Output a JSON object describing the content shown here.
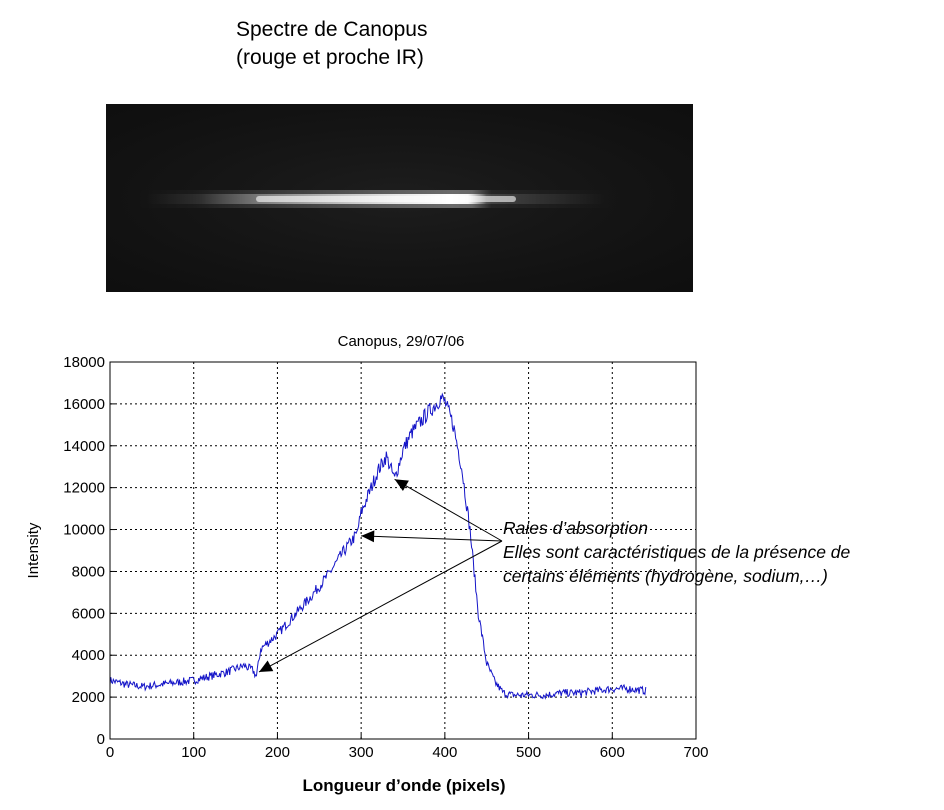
{
  "header": {
    "title_line1": "Spectre de Canopus",
    "title_line2": "(rouge et proche IR)"
  },
  "spectrum_image": {
    "description_icon": "spectrum-streak"
  },
  "annotation": {
    "line1": "Raies d’absorption",
    "line2": "Elles sont caractéristiques de la présence de",
    "line3": "certains éléments (hydrogène, sodium,…)",
    "arrow_targets": [
      {
        "x": 178,
        "y": 3200
      },
      {
        "x": 300,
        "y": 9700
      },
      {
        "x": 340,
        "y": 12400
      }
    ]
  },
  "chart_data": {
    "type": "line",
    "title": "Canopus, 29/07/06",
    "xlabel": "Longueur d’onde (pixels)",
    "ylabel": "Intensity",
    "xlim": [
      0,
      700
    ],
    "ylim": [
      0,
      18000
    ],
    "xticks": [
      0,
      100,
      200,
      300,
      400,
      500,
      600,
      700
    ],
    "yticks": [
      0,
      2000,
      4000,
      6000,
      8000,
      10000,
      12000,
      14000,
      16000,
      18000
    ],
    "grid": true,
    "series_color": "#1515c8",
    "series": [
      {
        "x": [
          0,
          20,
          40,
          60,
          80,
          100,
          120,
          140,
          160,
          170,
          175,
          180,
          200,
          220,
          240,
          260,
          280,
          295,
          300,
          310,
          320,
          330,
          340,
          350,
          360,
          380,
          390,
          395,
          400,
          410,
          420,
          430,
          440,
          450,
          460,
          470,
          480,
          500,
          520,
          540,
          560,
          580,
          600,
          620,
          640
        ],
        "y": [
          2800,
          2600,
          2500,
          2600,
          2700,
          2800,
          3000,
          3200,
          3500,
          3300,
          3000,
          4300,
          5000,
          5900,
          6800,
          7800,
          9000,
          9800,
          10800,
          11800,
          12800,
          13500,
          12400,
          13800,
          14600,
          15600,
          16000,
          16300,
          16100,
          15000,
          13000,
          10000,
          6000,
          3600,
          2700,
          2200,
          2100,
          2100,
          2100,
          2200,
          2200,
          2300,
          2400,
          2400,
          2300
        ]
      }
    ]
  }
}
